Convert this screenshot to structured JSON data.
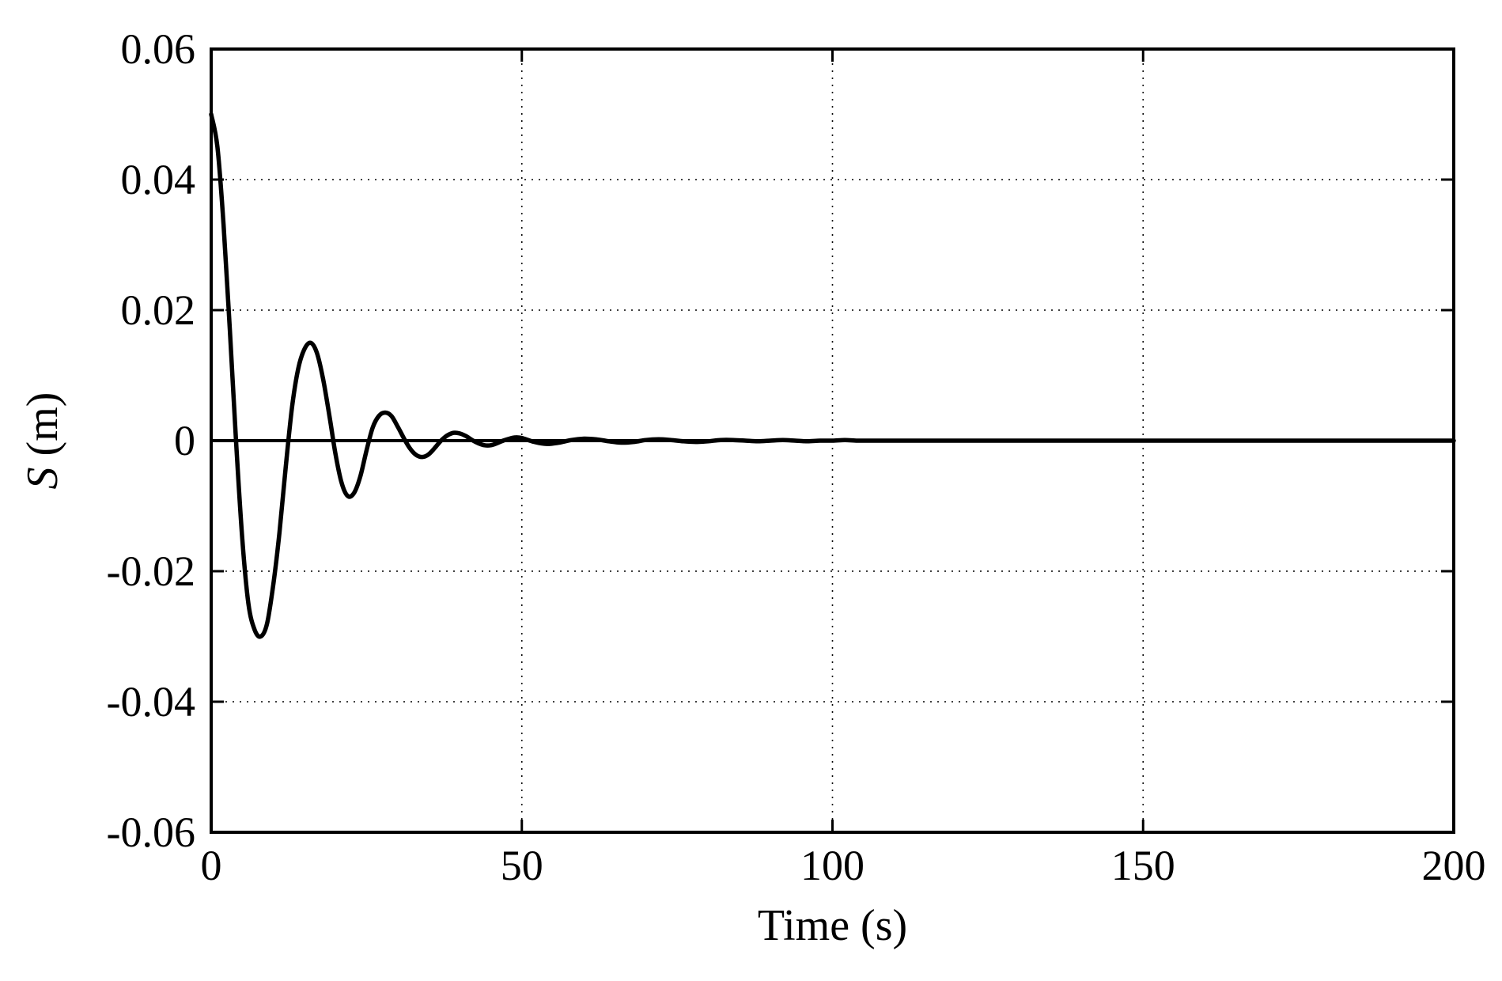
{
  "chart_data": {
    "type": "line",
    "title": "",
    "xlabel": "Time (s)",
    "ylabel_var": "S",
    "ylabel_unit": " (m)",
    "xlim": [
      0,
      200
    ],
    "ylim": [
      -0.06,
      0.06
    ],
    "x_ticks": [
      0,
      50,
      100,
      150,
      200
    ],
    "x_tick_labels": [
      "0",
      "50",
      "100",
      "150",
      "200"
    ],
    "y_ticks": [
      -0.06,
      -0.04,
      -0.02,
      0,
      0.02,
      0.04,
      0.06
    ],
    "y_tick_labels": [
      "-0.06",
      "-0.04",
      "-0.02",
      "0",
      "0.02",
      "0.04",
      "0.06"
    ],
    "grid": true,
    "grid_style": "dotted",
    "line_color": "#000000",
    "series": [
      {
        "name": "",
        "x": [
          0,
          1,
          2,
          3,
          4,
          5,
          6,
          7,
          8,
          9,
          10,
          11,
          12,
          13,
          14,
          15,
          16,
          17,
          18,
          19,
          20,
          21,
          22,
          23,
          24,
          25,
          26,
          27,
          28,
          29,
          30,
          31,
          32,
          33,
          34,
          35,
          36,
          37,
          38,
          39,
          40,
          41,
          42,
          43,
          44,
          45,
          46,
          47,
          48,
          49,
          50,
          52,
          54,
          56,
          58,
          60,
          62,
          64,
          66,
          68,
          70,
          72,
          74,
          76,
          78,
          80,
          82,
          84,
          86,
          88,
          90,
          92,
          94,
          96,
          98,
          100,
          102,
          104,
          106,
          108,
          110,
          112,
          114,
          116,
          118,
          120,
          125,
          130,
          140,
          150,
          160,
          170,
          180,
          190,
          200
        ],
        "y": [
          0.05,
          0.045,
          0.033,
          0.017,
          0.0,
          -0.015,
          -0.025,
          -0.029,
          -0.03,
          -0.028,
          -0.022,
          -0.014,
          -0.004,
          0.005,
          0.011,
          0.014,
          0.015,
          0.0135,
          0.0095,
          0.004,
          -0.002,
          -0.0065,
          -0.0085,
          -0.008,
          -0.0055,
          -0.0015,
          0.002,
          0.0038,
          0.0043,
          0.0038,
          0.0022,
          0.0004,
          -0.0012,
          -0.0022,
          -0.0025,
          -0.0021,
          -0.0011,
          0.0,
          0.0008,
          0.0012,
          0.0011,
          0.0007,
          0.0001,
          -0.0004,
          -0.0007,
          -0.0007,
          -0.0004,
          0.0,
          0.0003,
          0.0005,
          0.0004,
          -0.0002,
          -0.0005,
          -0.0003,
          0.0001,
          0.0003,
          0.0002,
          -0.0001,
          -0.0003,
          -0.0002,
          0.0001,
          0.0002,
          0.0001,
          -0.0001,
          -0.0002,
          -0.0001,
          0.0001,
          0.0001,
          0.0,
          -0.0001,
          0.0,
          0.0001,
          0.0,
          -0.0001,
          0.0,
          0.0,
          0.0001,
          0.0,
          0.0,
          0.0,
          0.0,
          0.0,
          0.0,
          0.0,
          0.0,
          0.0,
          0.0,
          0.0,
          0.0,
          0.0,
          0.0,
          0.0,
          0.0,
          0.0,
          0.0
        ]
      }
    ]
  }
}
